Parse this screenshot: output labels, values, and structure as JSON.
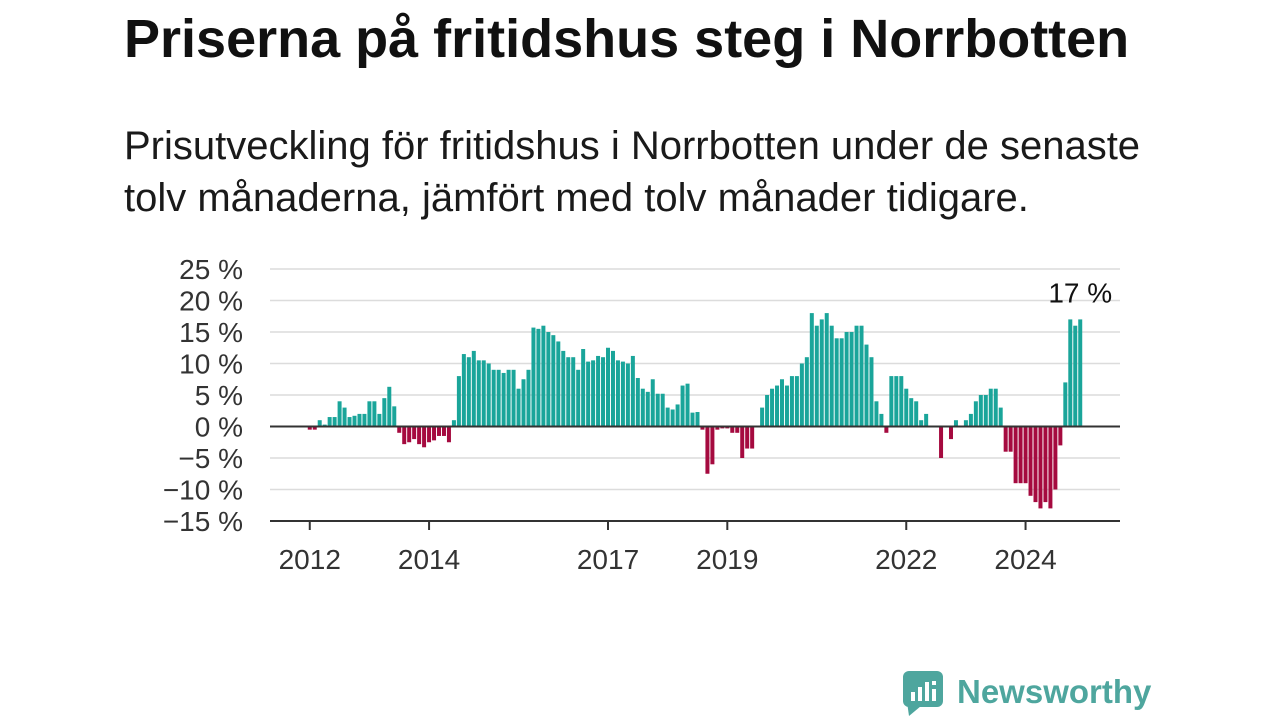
{
  "logo": {
    "text": "Newsworthy",
    "icon": "newsworthy-logo-icon",
    "color": "#4ea69e"
  },
  "chart_data": {
    "type": "bar",
    "title": "Priserna på fritidshus steg i Norrbotten",
    "subtitle": "Prisutveckling för fritidshus i Norrbotten under de senaste tolv månaderna, jämfört med tolv månader tidigare.",
    "colors": {
      "positive": "#1aa59a",
      "negative": "#a50a3f"
    },
    "grid": "horizontal",
    "ylim": [
      -15,
      25
    ],
    "xlim": [
      "2011-05",
      "2025-08"
    ],
    "y_ticks": {
      "values": [
        25,
        20,
        15,
        10,
        5,
        0,
        -5,
        -10,
        -15
      ],
      "labels": [
        "25 %",
        "20 %",
        "15 %",
        "10 %",
        "5 %",
        "0 %",
        "−5 %",
        "−10 %",
        "−15 %"
      ]
    },
    "x_ticks": {
      "values": [
        "2012-01",
        "2014-01",
        "2017-01",
        "2019-01",
        "2022-01",
        "2024-01"
      ],
      "labels": [
        "2012",
        "2014",
        "2017",
        "2019",
        "2022",
        "2024"
      ]
    },
    "annotations": [
      {
        "x": "2024-12",
        "text": "17 %"
      }
    ],
    "x": [
      "2012-01",
      "2012-02",
      "2012-03",
      "2012-04",
      "2012-05",
      "2012-06",
      "2012-07",
      "2012-08",
      "2012-09",
      "2012-10",
      "2012-11",
      "2012-12",
      "2013-01",
      "2013-02",
      "2013-03",
      "2013-04",
      "2013-05",
      "2013-06",
      "2013-07",
      "2013-08",
      "2013-09",
      "2013-10",
      "2013-11",
      "2013-12",
      "2014-01",
      "2014-02",
      "2014-03",
      "2014-04",
      "2014-05",
      "2014-06",
      "2014-07",
      "2014-08",
      "2014-09",
      "2014-10",
      "2014-11",
      "2014-12",
      "2015-01",
      "2015-02",
      "2015-03",
      "2015-04",
      "2015-05",
      "2015-06",
      "2015-07",
      "2015-08",
      "2015-09",
      "2015-10",
      "2015-11",
      "2015-12",
      "2016-01",
      "2016-02",
      "2016-03",
      "2016-04",
      "2016-05",
      "2016-06",
      "2016-07",
      "2016-08",
      "2016-09",
      "2016-10",
      "2016-11",
      "2016-12",
      "2017-01",
      "2017-02",
      "2017-03",
      "2017-04",
      "2017-05",
      "2017-06",
      "2017-07",
      "2017-08",
      "2017-09",
      "2017-10",
      "2017-11",
      "2017-12",
      "2018-01",
      "2018-02",
      "2018-03",
      "2018-04",
      "2018-05",
      "2018-06",
      "2018-07",
      "2018-08",
      "2018-09",
      "2018-10",
      "2018-11",
      "2018-12",
      "2019-01",
      "2019-02",
      "2019-03",
      "2019-04",
      "2019-05",
      "2019-06",
      "2019-07",
      "2019-08",
      "2019-09",
      "2019-10",
      "2019-11",
      "2019-12",
      "2020-01",
      "2020-02",
      "2020-03",
      "2020-04",
      "2020-05",
      "2020-06",
      "2020-07",
      "2020-08",
      "2020-09",
      "2020-10",
      "2020-11",
      "2020-12",
      "2021-01",
      "2021-02",
      "2021-03",
      "2021-04",
      "2021-05",
      "2021-06",
      "2021-07",
      "2021-08",
      "2021-09",
      "2021-10",
      "2021-11",
      "2021-12",
      "2022-01",
      "2022-02",
      "2022-03",
      "2022-04",
      "2022-05",
      "2022-06",
      "2022-07",
      "2022-08",
      "2022-09",
      "2022-10",
      "2022-11",
      "2022-12",
      "2023-01",
      "2023-02",
      "2023-03",
      "2023-04",
      "2023-05",
      "2023-06",
      "2023-07",
      "2023-08",
      "2023-09",
      "2023-10",
      "2023-11",
      "2023-12",
      "2024-01",
      "2024-02",
      "2024-03",
      "2024-04",
      "2024-05",
      "2024-06",
      "2024-07",
      "2024-08",
      "2024-09",
      "2024-10",
      "2024-11",
      "2024-12"
    ],
    "values": [
      -0.5,
      -0.5,
      1,
      0.3,
      1.5,
      1.5,
      4,
      3,
      1.5,
      1.7,
      2,
      2,
      4,
      4,
      2,
      4.5,
      6.3,
      3.2,
      -1,
      -2.8,
      -2.5,
      -2,
      -2.8,
      -3.3,
      -2.5,
      -2.2,
      -1.5,
      -1.5,
      -2.5,
      1,
      8,
      11.5,
      11,
      12,
      10.5,
      10.5,
      10,
      9,
      9,
      8.5,
      9,
      9,
      6,
      7.5,
      9,
      15.7,
      15.5,
      16,
      15,
      14.5,
      13.5,
      12,
      11,
      11,
      9,
      12.3,
      10.3,
      10.5,
      11.2,
      11,
      12.5,
      12,
      10.5,
      10.3,
      10,
      11.2,
      7.7,
      6,
      5.5,
      7.5,
      5.2,
      5.2,
      3,
      2.7,
      3.5,
      6.5,
      6.8,
      2.2,
      2.3,
      -0.5,
      -7.5,
      -6,
      -0.5,
      -0.3,
      -0.3,
      -1,
      -1,
      -5,
      -3.5,
      -3.5,
      0,
      3,
      5,
      6,
      6.5,
      7.5,
      6.5,
      8,
      8,
      10,
      11,
      18,
      16,
      17,
      18,
      16,
      14,
      14,
      15,
      15,
      16,
      16,
      13,
      11,
      4,
      2,
      -1,
      8,
      8,
      8,
      6,
      4.5,
      4,
      1,
      2,
      0,
      0,
      -5,
      0,
      -2,
      1,
      0,
      1,
      2,
      4,
      5,
      5,
      6,
      6,
      3,
      -4,
      -4,
      -9,
      -9,
      -9,
      -11,
      -12,
      -13,
      -12,
      -13,
      -10,
      -3,
      7,
      17,
      16,
      17
    ]
  }
}
